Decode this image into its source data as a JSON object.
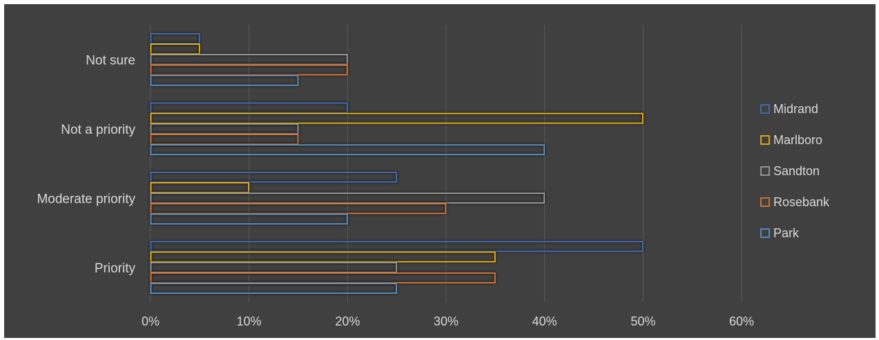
{
  "chart_data": {
    "type": "bar",
    "orientation": "horizontal",
    "categories": [
      "Priority",
      "Moderate priority",
      "Not a priority",
      "Not sure"
    ],
    "series": [
      {
        "name": "Midrand",
        "color": "#4472c4",
        "values": [
          0.5,
          0.25,
          0.2,
          0.05
        ]
      },
      {
        "name": "Marlboro",
        "color": "#ffc000",
        "values": [
          0.35,
          0.1,
          0.5,
          0.05
        ]
      },
      {
        "name": "Sandton",
        "color": "#a5a5a5",
        "values": [
          0.25,
          0.4,
          0.15,
          0.2
        ]
      },
      {
        "name": "Rosebank",
        "color": "#ed7d31",
        "values": [
          0.35,
          0.3,
          0.15,
          0.2
        ]
      },
      {
        "name": "Park",
        "color": "#5b9bd5",
        "values": [
          0.25,
          0.2,
          0.4,
          0.15
        ]
      }
    ],
    "xlim": [
      0,
      0.6
    ],
    "xticks": [
      0,
      0.1,
      0.2,
      0.3,
      0.4,
      0.5,
      0.6
    ],
    "xtick_labels": [
      "0%",
      "10%",
      "20%",
      "30%",
      "40%",
      "50%",
      "60%"
    ],
    "xlabel": "",
    "ylabel": "",
    "title": "",
    "grid": true,
    "legend_position": "right",
    "background": "#404040"
  }
}
